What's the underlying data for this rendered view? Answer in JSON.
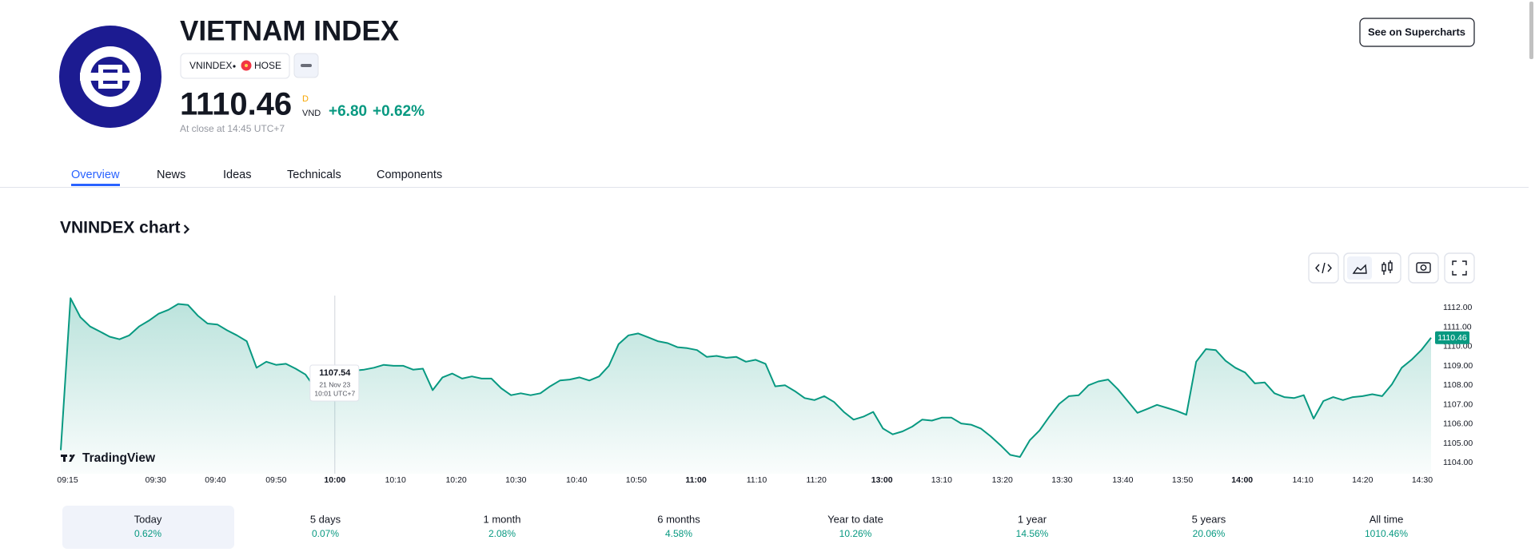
{
  "header": {
    "title": "VIETNAM INDEX",
    "symbol": "VNINDEX",
    "exchange": "HOSE",
    "price": "1110.46",
    "price_flag": "D",
    "currency": "VND",
    "change": "+6.80",
    "change_percent": "+0.62%",
    "status": "At close at 14:45 UTC+7",
    "button": "See on Supercharts"
  },
  "tabs": [
    "Overview",
    "News",
    "Ideas",
    "Technicals",
    "Components"
  ],
  "periods": [
    {
      "label": "Today",
      "change": "0.62%"
    },
    {
      "label": "5 days",
      "change": "0.07%"
    },
    {
      "label": "1 month",
      "change": "2.08%"
    },
    {
      "label": "6 months",
      "change": "4.58%"
    },
    {
      "label": "Year to date",
      "change": "10.26%"
    },
    {
      "label": "1 year",
      "change": "14.56%"
    },
    {
      "label": "5 years",
      "change": "20.06%"
    },
    {
      "label": "All time",
      "change": "1010.46%"
    }
  ],
  "chart_data": {
    "type": "area",
    "title": "VNINDEX chart",
    "watermark": "TradingView",
    "color": "#089981",
    "values": [
      1104.65,
      1112.5,
      1111.52,
      1111.04,
      1110.78,
      1110.51,
      1110.38,
      1110.58,
      1111.04,
      1111.34,
      1111.7,
      1111.9,
      1112.2,
      1112.15,
      1111.6,
      1111.19,
      1111.14,
      1110.84,
      1110.58,
      1110.28,
      1108.91,
      1109.22,
      1109.06,
      1109.11,
      1108.86,
      1108.56,
      1107.85,
      1107.9,
      1107.54,
      1108.66,
      1108.76,
      1108.81,
      1108.91,
      1109.06,
      1109.01,
      1109.01,
      1108.81,
      1108.86,
      1107.75,
      1108.41,
      1108.61,
      1108.35,
      1108.46,
      1108.35,
      1108.35,
      1107.85,
      1107.49,
      1107.59,
      1107.49,
      1107.59,
      1107.95,
      1108.25,
      1108.3,
      1108.41,
      1108.25,
      1108.46,
      1109.01,
      1110.13,
      1110.58,
      1110.68,
      1110.48,
      1110.28,
      1110.18,
      1109.97,
      1109.92,
      1109.82,
      1109.47,
      1109.52,
      1109.42,
      1109.47,
      1109.22,
      1109.32,
      1109.11,
      1107.95,
      1108.0,
      1107.7,
      1107.34,
      1107.24,
      1107.44,
      1107.14,
      1106.63,
      1106.23,
      1106.38,
      1106.63,
      1105.77,
      1105.47,
      1105.62,
      1105.87,
      1106.23,
      1106.18,
      1106.33,
      1106.33,
      1106.03,
      1105.97,
      1105.77,
      1105.37,
      1104.91,
      1104.41,
      1104.3,
      1105.16,
      1105.67,
      1106.38,
      1107.04,
      1107.44,
      1107.49,
      1108.0,
      1108.2,
      1108.3,
      1107.8,
      1107.19,
      1106.58,
      1106.78,
      1106.99,
      1106.84,
      1106.68,
      1106.48,
      1109.22,
      1109.87,
      1109.82,
      1109.27,
      1108.91,
      1108.66,
      1108.1,
      1108.15,
      1107.59,
      1107.39,
      1107.34,
      1107.49,
      1106.28,
      1107.19,
      1107.39,
      1107.24,
      1107.39,
      1107.44,
      1107.54,
      1107.44,
      1108.05,
      1108.91,
      1109.32,
      1109.82,
      1110.46
    ],
    "xlim": [
      0,
      140
    ],
    "xticks": [
      {
        "value": 0.7,
        "label": "09:15"
      },
      {
        "value": 9.7,
        "label": "09:30"
      },
      {
        "value": 15.8,
        "label": "09:40"
      },
      {
        "value": 22,
        "label": "09:50"
      },
      {
        "value": 28,
        "label": "10:00"
      },
      {
        "value": 34.2,
        "label": "10:10"
      },
      {
        "value": 40.4,
        "label": "10:20"
      },
      {
        "value": 46.5,
        "label": "10:30"
      },
      {
        "value": 52.7,
        "label": "10:40"
      },
      {
        "value": 58.8,
        "label": "10:50"
      },
      {
        "value": 64.9,
        "label": "11:00"
      },
      {
        "value": 71.1,
        "label": "11:10"
      },
      {
        "value": 77.2,
        "label": "11:20"
      },
      {
        "value": 83.9,
        "label": "13:00"
      },
      {
        "value": 90,
        "label": "13:10"
      },
      {
        "value": 96.2,
        "label": "13:20"
      },
      {
        "value": 102.3,
        "label": "13:30"
      },
      {
        "value": 108.5,
        "label": "13:40"
      },
      {
        "value": 114.6,
        "label": "13:50"
      },
      {
        "value": 120.7,
        "label": "14:00"
      },
      {
        "value": 126.9,
        "label": "14:10"
      },
      {
        "value": 133,
        "label": "14:20"
      },
      {
        "value": 139.1,
        "label": "14:30"
      }
    ],
    "ylim": [
      1103.6,
      1112.8
    ],
    "yticks": [
      {
        "value": 1104,
        "label": "1104.00"
      },
      {
        "value": 1105,
        "label": "1105.00"
      },
      {
        "value": 1106,
        "label": "1106.00"
      },
      {
        "value": 1107,
        "label": "1107.00"
      },
      {
        "value": 1108,
        "label": "1108.00"
      },
      {
        "value": 1109,
        "label": "1109.00"
      },
      {
        "value": 1110,
        "label": "1110.00"
      },
      {
        "value": 1111,
        "label": "1111.00"
      },
      {
        "value": 1112,
        "label": "1112.00"
      }
    ],
    "tooltip": {
      "x": 28,
      "value": "1107.54",
      "date": "21 Nov 23",
      "time": "10:01 UTC+7"
    }
  }
}
